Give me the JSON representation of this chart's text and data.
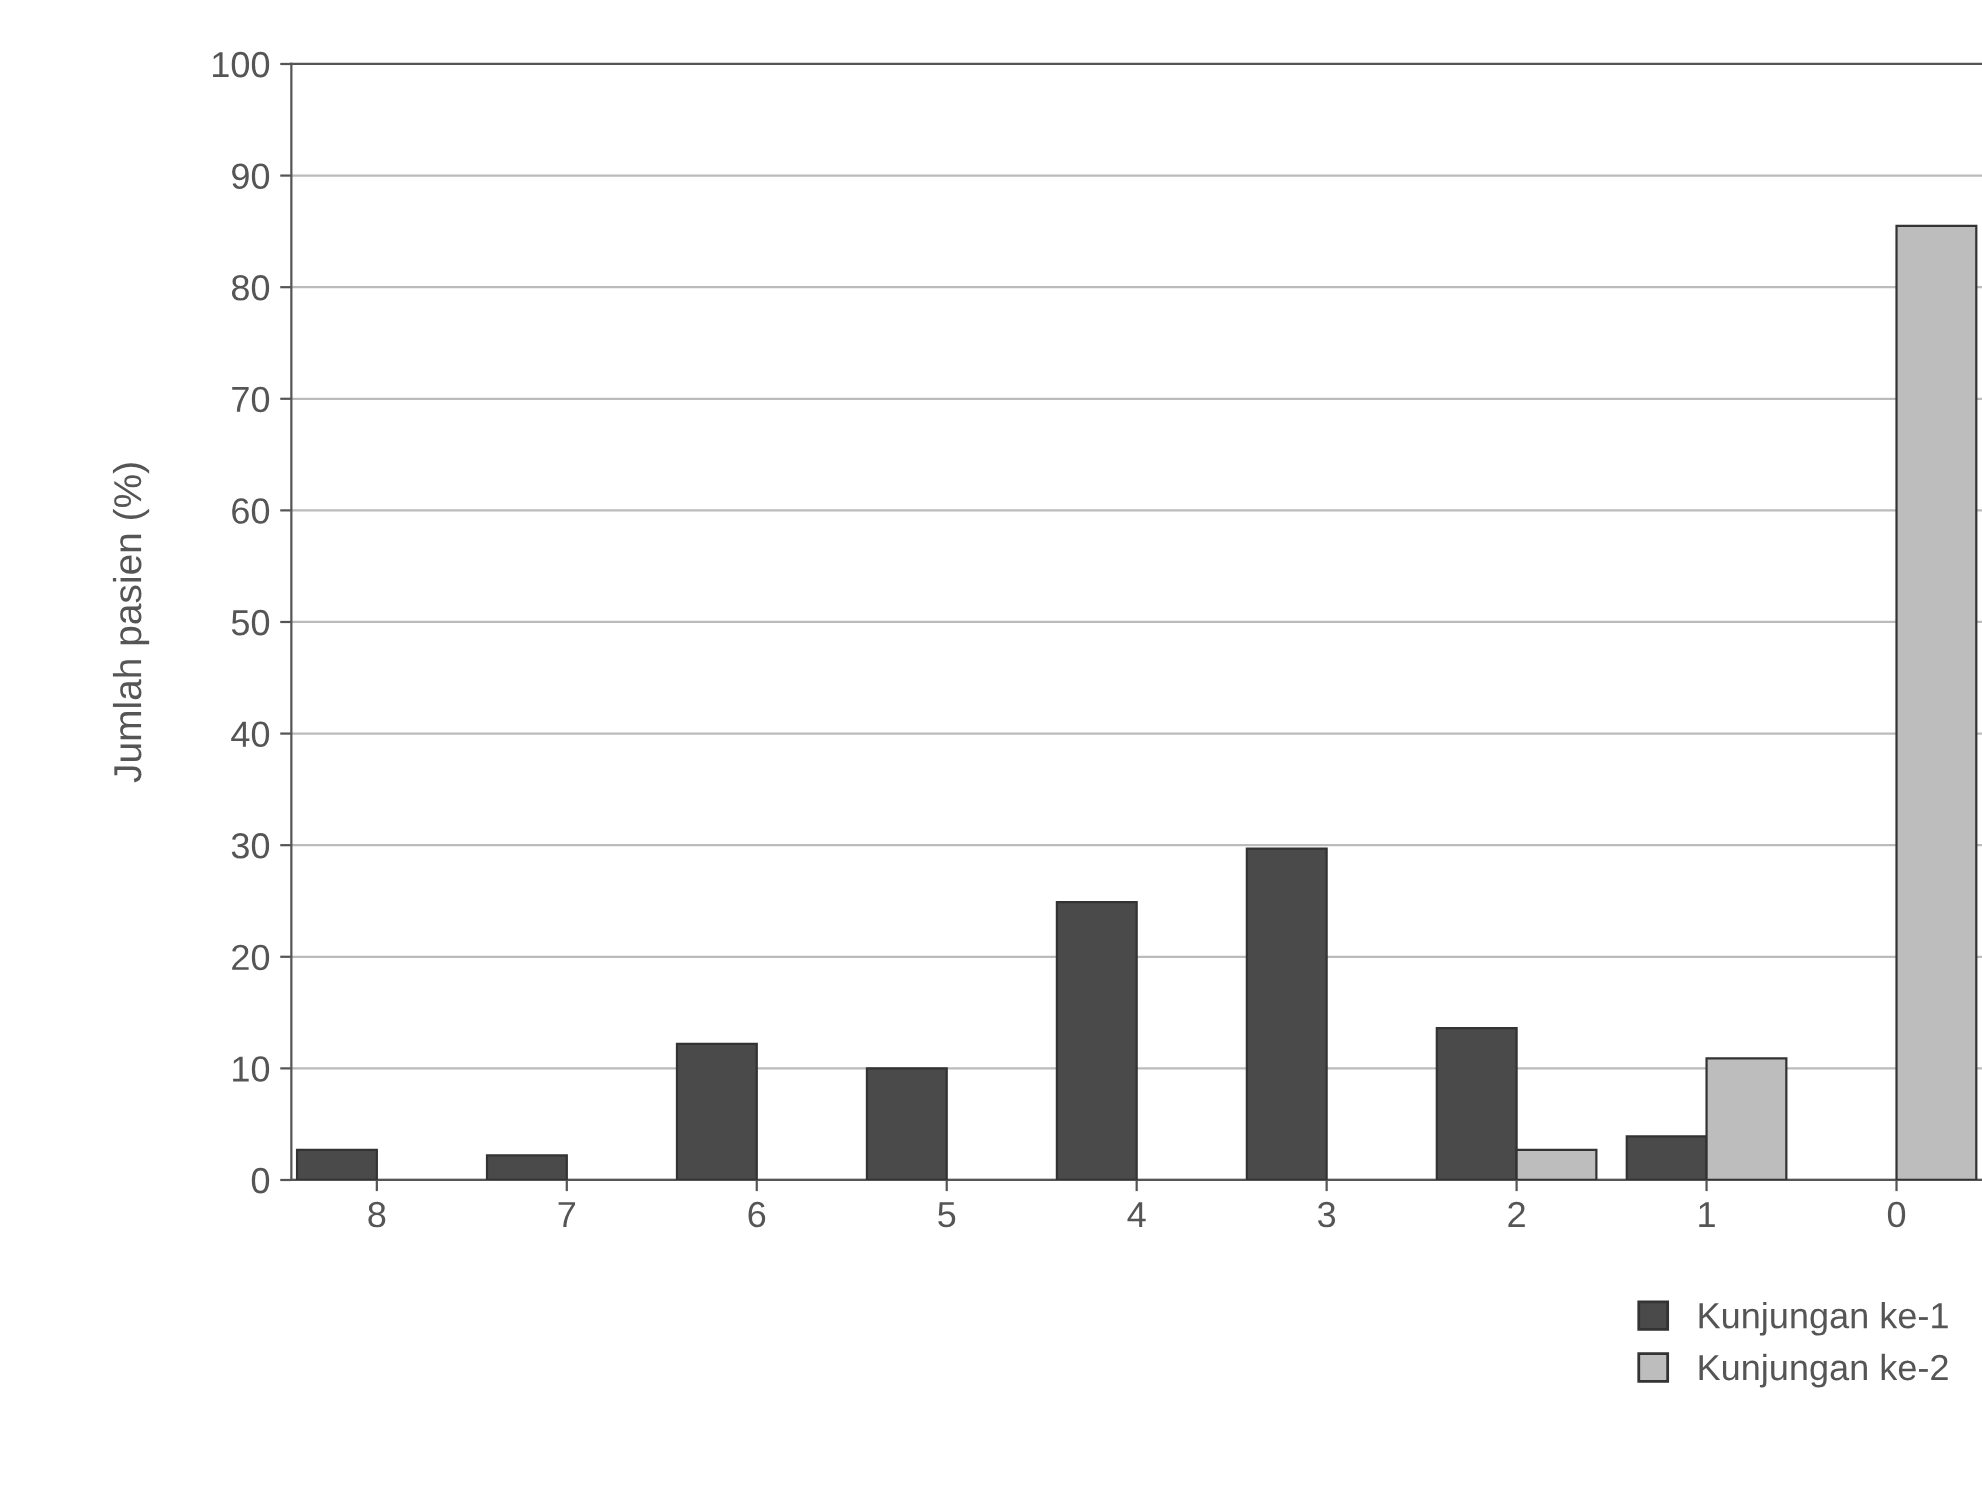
{
  "chart_data": {
    "type": "bar",
    "ylabel": "Jumlah pasien (%)",
    "categories": [
      "8",
      "7",
      "6",
      "5",
      "4",
      "3",
      "2",
      "1",
      "0"
    ],
    "series": [
      {
        "name": "Kunjungan ke-1",
        "color": "#4a4a4a",
        "values": [
          2.7,
          2.2,
          12.2,
          10,
          24.9,
          29.7,
          13.6,
          3.9,
          0
        ]
      },
      {
        "name": "Kunjungan ke-2",
        "color": "#bdbdbd",
        "values": [
          0,
          0,
          0,
          0,
          0,
          0,
          2.7,
          10.9,
          85.5
        ]
      }
    ],
    "ylim": [
      0,
      100
    ],
    "yticks": [
      0,
      10,
      20,
      30,
      40,
      50,
      60,
      70,
      80,
      90,
      100
    ],
    "grid": "y",
    "legend": "bottom right"
  }
}
